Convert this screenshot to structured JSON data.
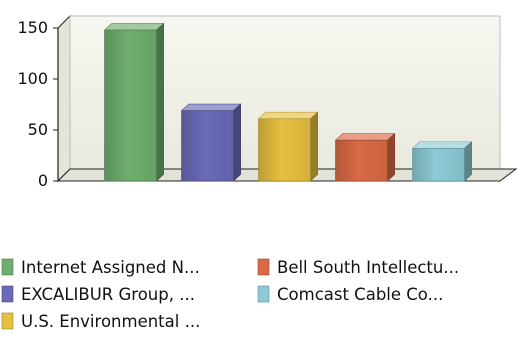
{
  "chart_data": {
    "type": "bar",
    "title": "",
    "xlabel": "",
    "ylabel": "",
    "ylim": [
      0,
      150
    ],
    "y_ticks": [
      "0",
      "50",
      "100",
      "150"
    ],
    "grid": false,
    "three_d": true,
    "legend_position": "bottom",
    "categories": [
      "Internet Assigned N...",
      "EXCALIBUR Group, ...",
      "U.S. Environmental ...",
      "Bell South Intellectu...",
      "Comcast Cable Co..."
    ],
    "values": [
      148,
      69,
      61,
      40,
      32
    ],
    "colors": [
      "#6fae6e",
      "#6a6ab8",
      "#e6c040",
      "#d96a45",
      "#8ccbd6"
    ]
  }
}
